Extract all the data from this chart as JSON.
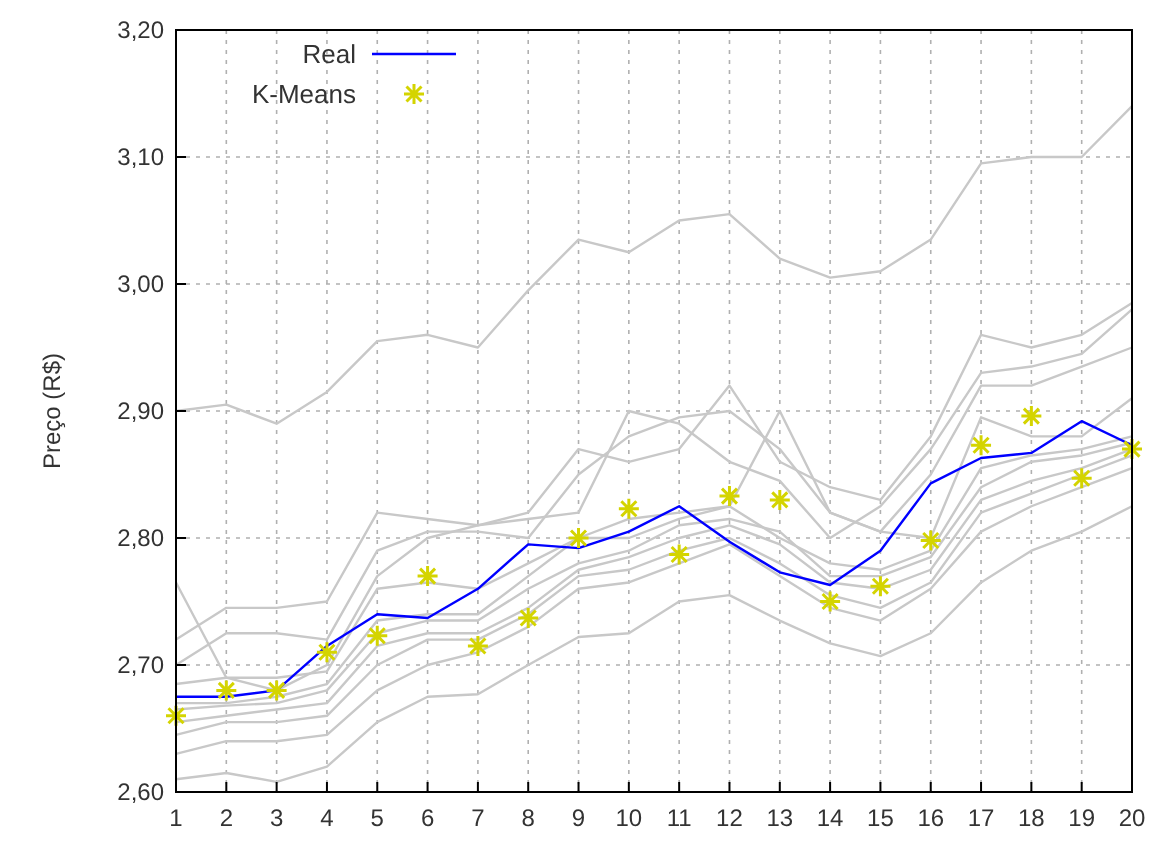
{
  "chart_data": {
    "type": "line",
    "ylabel": "Preço (R$)",
    "x": [
      1,
      2,
      3,
      4,
      5,
      6,
      7,
      8,
      9,
      10,
      11,
      12,
      13,
      14,
      15,
      16,
      17,
      18,
      19,
      20
    ],
    "xlim": [
      1,
      20
    ],
    "xticks": [
      1,
      2,
      3,
      4,
      5,
      6,
      7,
      8,
      9,
      10,
      11,
      12,
      13,
      14,
      15,
      16,
      17,
      18,
      19,
      20
    ],
    "ylim": [
      2.6,
      3.2
    ],
    "yticks": [
      {
        "value": 2.6,
        "label": "2,60"
      },
      {
        "value": 2.7,
        "label": "2,70"
      },
      {
        "value": 2.8,
        "label": "2,80"
      },
      {
        "value": 2.9,
        "label": "2,90"
      },
      {
        "value": 3.0,
        "label": "3,00"
      },
      {
        "value": 3.1,
        "label": "3,10"
      },
      {
        "value": 3.2,
        "label": "3,20"
      }
    ],
    "grid": true,
    "legend": "top left",
    "line_style": "solid",
    "series": [
      {
        "color": "#c8c8c8",
        "values": [
          2.9,
          2.905,
          2.89,
          2.915,
          2.955,
          2.96,
          2.95,
          2.995,
          3.035,
          3.025,
          3.05,
          3.055,
          3.02,
          3.005,
          3.01,
          3.035,
          3.095,
          3.1,
          3.1,
          3.14
        ]
      },
      {
        "color": "#c8c8c8",
        "values": [
          2.61,
          2.615,
          2.608,
          2.62,
          2.655,
          2.675,
          2.677,
          2.7,
          2.722,
          2.725,
          2.75,
          2.755,
          2.735,
          2.717,
          2.707,
          2.725,
          2.765,
          2.79,
          2.805,
          2.825
        ]
      },
      {
        "color": "#c8c8c8",
        "values": [
          2.765,
          2.69,
          2.68,
          2.7,
          2.77,
          2.8,
          2.81,
          2.815,
          2.82,
          2.9,
          2.89,
          2.86,
          2.845,
          2.8,
          2.825,
          2.87,
          2.93,
          2.935,
          2.945,
          2.98
        ]
      },
      {
        "color": "#c8c8c8",
        "values": [
          2.72,
          2.745,
          2.745,
          2.75,
          2.82,
          2.815,
          2.81,
          2.82,
          2.87,
          2.86,
          2.87,
          2.92,
          2.86,
          2.84,
          2.83,
          2.88,
          2.96,
          2.95,
          2.96,
          2.985
        ]
      },
      {
        "color": "#c8c8c8",
        "values": [
          2.7,
          2.725,
          2.725,
          2.72,
          2.79,
          2.805,
          2.805,
          2.8,
          2.85,
          2.88,
          2.895,
          2.9,
          2.87,
          2.82,
          2.805,
          2.85,
          2.92,
          2.92,
          2.935,
          2.95
        ]
      },
      {
        "color": "#c8c8c8",
        "values": [
          2.685,
          2.69,
          2.69,
          2.695,
          2.76,
          2.765,
          2.76,
          2.78,
          2.8,
          2.8,
          2.815,
          2.825,
          2.9,
          2.82,
          2.805,
          2.8,
          2.895,
          2.88,
          2.88,
          2.91
        ]
      },
      {
        "color": "#c8c8c8",
        "values": [
          2.67,
          2.67,
          2.675,
          2.685,
          2.735,
          2.74,
          2.74,
          2.77,
          2.8,
          2.815,
          2.82,
          2.825,
          2.8,
          2.78,
          2.775,
          2.79,
          2.855,
          2.865,
          2.87,
          2.88
        ]
      },
      {
        "color": "#c8c8c8",
        "values": [
          2.665,
          2.668,
          2.67,
          2.68,
          2.725,
          2.735,
          2.735,
          2.76,
          2.78,
          2.79,
          2.81,
          2.815,
          2.805,
          2.77,
          2.77,
          2.785,
          2.84,
          2.86,
          2.865,
          2.875
        ]
      },
      {
        "color": "#c8c8c8",
        "values": [
          2.655,
          2.66,
          2.665,
          2.67,
          2.715,
          2.725,
          2.725,
          2.745,
          2.775,
          2.785,
          2.8,
          2.81,
          2.795,
          2.765,
          2.76,
          2.775,
          2.83,
          2.845,
          2.855,
          2.87
        ]
      },
      {
        "color": "#c8c8c8",
        "values": [
          2.645,
          2.655,
          2.655,
          2.66,
          2.7,
          2.72,
          2.72,
          2.74,
          2.77,
          2.775,
          2.79,
          2.8,
          2.78,
          2.755,
          2.745,
          2.765,
          2.82,
          2.835,
          2.85,
          2.865
        ]
      },
      {
        "color": "#c8c8c8",
        "values": [
          2.63,
          2.64,
          2.64,
          2.645,
          2.68,
          2.7,
          2.71,
          2.73,
          2.76,
          2.765,
          2.78,
          2.795,
          2.77,
          2.745,
          2.735,
          2.76,
          2.805,
          2.825,
          2.84,
          2.855
        ]
      },
      {
        "name": "Real",
        "color": "#0000ff",
        "values": [
          2.675,
          2.675,
          2.68,
          2.715,
          2.74,
          2.737,
          2.76,
          2.795,
          2.792,
          2.805,
          2.825,
          2.797,
          2.773,
          2.763,
          2.79,
          2.843,
          2.863,
          2.867,
          2.892,
          2.873
        ]
      },
      {
        "name": "K-Means",
        "type": "scatter",
        "marker": "cross",
        "color": "#d4d400",
        "values": [
          2.66,
          2.68,
          2.68,
          2.71,
          2.723,
          2.77,
          2.715,
          2.737,
          2.8,
          2.823,
          2.787,
          2.833,
          2.83,
          2.75,
          2.762,
          2.798,
          2.873,
          2.896,
          2.847,
          2.87
        ]
      }
    ]
  }
}
